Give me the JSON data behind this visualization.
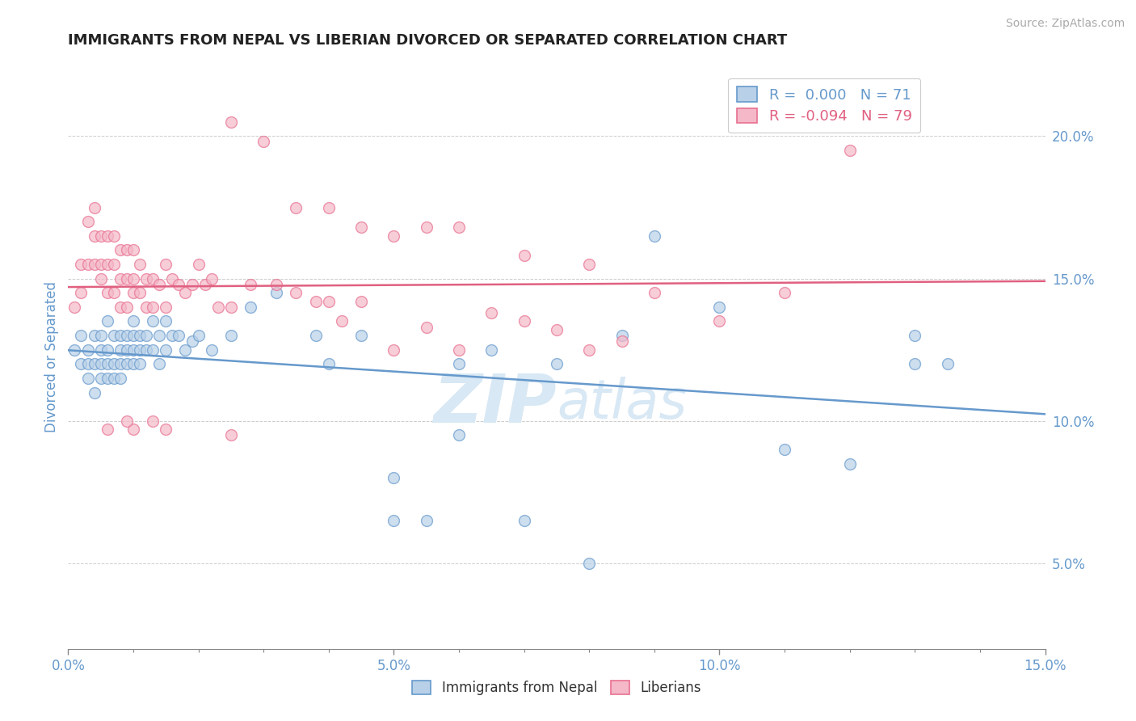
{
  "title": "IMMIGRANTS FROM NEPAL VS LIBERIAN DIVORCED OR SEPARATED CORRELATION CHART",
  "source_text": "Source: ZipAtlas.com",
  "ylabel": "Divorced or Separated",
  "xlim": [
    0.0,
    0.15
  ],
  "ylim": [
    0.02,
    0.225
  ],
  "legend_r_nepal": " 0.000",
  "legend_n_nepal": "71",
  "legend_r_liberian": "-0.094",
  "legend_n_liberian": "79",
  "color_nepal_fill": "#b8d0e8",
  "color_liberian_fill": "#f4b8c8",
  "color_nepal_edge": "#6699cc",
  "color_liberian_edge": "#e87090",
  "color_nepal_line": "#6699cc",
  "color_liberian_line": "#e06080",
  "color_title": "#222222",
  "color_axis_label": "#6699cc",
  "color_tick_label": "#6699cc",
  "color_source": "#aaaaaa",
  "color_grid": "#cccccc",
  "watermark_color": "#d8e8f4",
  "nepal_x": [
    0.001,
    0.002,
    0.002,
    0.003,
    0.003,
    0.003,
    0.004,
    0.004,
    0.004,
    0.005,
    0.005,
    0.005,
    0.005,
    0.006,
    0.006,
    0.006,
    0.006,
    0.007,
    0.007,
    0.007,
    0.008,
    0.008,
    0.008,
    0.008,
    0.009,
    0.009,
    0.009,
    0.01,
    0.01,
    0.01,
    0.01,
    0.011,
    0.011,
    0.011,
    0.012,
    0.012,
    0.013,
    0.013,
    0.014,
    0.014,
    0.015,
    0.015,
    0.016,
    0.017,
    0.018,
    0.019,
    0.02,
    0.022,
    0.025,
    0.028,
    0.032,
    0.038,
    0.04,
    0.045,
    0.05,
    0.055,
    0.06,
    0.065,
    0.075,
    0.085,
    0.09,
    0.1,
    0.11,
    0.12,
    0.13,
    0.13,
    0.135,
    0.06,
    0.07,
    0.08,
    0.05
  ],
  "nepal_y": [
    0.125,
    0.13,
    0.12,
    0.125,
    0.115,
    0.12,
    0.13,
    0.12,
    0.11,
    0.13,
    0.125,
    0.115,
    0.12,
    0.135,
    0.125,
    0.12,
    0.115,
    0.13,
    0.12,
    0.115,
    0.13,
    0.125,
    0.12,
    0.115,
    0.13,
    0.125,
    0.12,
    0.135,
    0.13,
    0.125,
    0.12,
    0.13,
    0.125,
    0.12,
    0.13,
    0.125,
    0.135,
    0.125,
    0.13,
    0.12,
    0.135,
    0.125,
    0.13,
    0.13,
    0.125,
    0.128,
    0.13,
    0.125,
    0.13,
    0.14,
    0.145,
    0.13,
    0.12,
    0.13,
    0.08,
    0.065,
    0.12,
    0.125,
    0.12,
    0.13,
    0.165,
    0.14,
    0.09,
    0.085,
    0.12,
    0.13,
    0.12,
    0.095,
    0.065,
    0.05,
    0.065
  ],
  "liberian_x": [
    0.001,
    0.002,
    0.002,
    0.003,
    0.003,
    0.004,
    0.004,
    0.004,
    0.005,
    0.005,
    0.005,
    0.006,
    0.006,
    0.006,
    0.007,
    0.007,
    0.007,
    0.008,
    0.008,
    0.008,
    0.009,
    0.009,
    0.009,
    0.01,
    0.01,
    0.01,
    0.011,
    0.011,
    0.012,
    0.012,
    0.013,
    0.013,
    0.014,
    0.015,
    0.015,
    0.016,
    0.017,
    0.018,
    0.019,
    0.02,
    0.021,
    0.022,
    0.023,
    0.025,
    0.028,
    0.032,
    0.035,
    0.038,
    0.04,
    0.042,
    0.045,
    0.05,
    0.055,
    0.06,
    0.065,
    0.07,
    0.075,
    0.08,
    0.085,
    0.025,
    0.03,
    0.035,
    0.04,
    0.045,
    0.05,
    0.055,
    0.06,
    0.07,
    0.08,
    0.09,
    0.1,
    0.11,
    0.12,
    0.025,
    0.015,
    0.01,
    0.006,
    0.009,
    0.013
  ],
  "liberian_y": [
    0.14,
    0.155,
    0.145,
    0.17,
    0.155,
    0.175,
    0.165,
    0.155,
    0.165,
    0.155,
    0.15,
    0.165,
    0.155,
    0.145,
    0.165,
    0.155,
    0.145,
    0.16,
    0.15,
    0.14,
    0.16,
    0.15,
    0.14,
    0.16,
    0.15,
    0.145,
    0.155,
    0.145,
    0.15,
    0.14,
    0.15,
    0.14,
    0.148,
    0.155,
    0.14,
    0.15,
    0.148,
    0.145,
    0.148,
    0.155,
    0.148,
    0.15,
    0.14,
    0.14,
    0.148,
    0.148,
    0.145,
    0.142,
    0.142,
    0.135,
    0.142,
    0.125,
    0.133,
    0.125,
    0.138,
    0.135,
    0.132,
    0.125,
    0.128,
    0.205,
    0.198,
    0.175,
    0.175,
    0.168,
    0.165,
    0.168,
    0.168,
    0.158,
    0.155,
    0.145,
    0.135,
    0.145,
    0.195,
    0.095,
    0.097,
    0.097,
    0.097,
    0.1,
    0.1
  ]
}
